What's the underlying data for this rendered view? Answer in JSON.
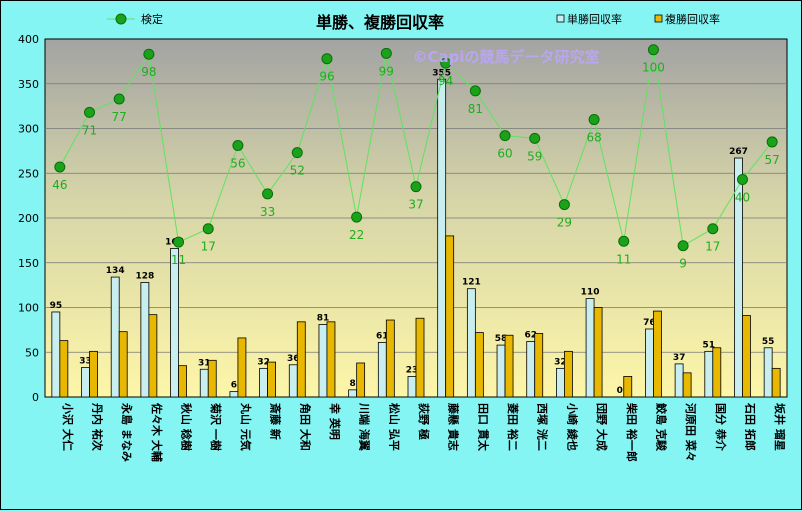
{
  "chart_data": {
    "type": "bar",
    "title": "単勝、複勝回収率",
    "watermark": "©Capiの競馬データ研究室",
    "ylim": [
      0,
      400
    ],
    "yticks": [
      0,
      50,
      100,
      150,
      200,
      250,
      300,
      350,
      400
    ],
    "grid": true,
    "legend_position": "top",
    "categories": [
      "小沢 大仁",
      "丹内 祐次",
      "永島 まなみ",
      "佐々木 大輔",
      "秋山 稔樹",
      "菊沢 一樹",
      "丸山 元気",
      "斎藤 新",
      "角田 大和",
      "幸 英明",
      "川端 海翼",
      "松山 弘平",
      "荻野 極",
      "藤懸 貴志",
      "田口 貫太",
      "菱田 裕二",
      "西塚 洸二",
      "小崎 綾也",
      "団野 大成",
      "柴田 裕一郎",
      "鮫島 克駿",
      "河原田 菜々",
      "国分 恭介",
      "石田 拓郎",
      "坂井 瑠星"
    ],
    "series": [
      {
        "name": "単勝回収率",
        "type": "bar",
        "color": "#c8eef0",
        "values": [
          95,
          33,
          134,
          128,
          166,
          31,
          6,
          32,
          36,
          81,
          8,
          61,
          23,
          355,
          121,
          58,
          62,
          32,
          110,
          0,
          76,
          37,
          51,
          267,
          55
        ]
      },
      {
        "name": "複勝回収率",
        "type": "bar",
        "color": "#e8b800",
        "values": [
          63,
          51,
          73,
          92,
          35,
          41,
          66,
          39,
          84,
          84,
          38,
          86,
          88,
          180,
          72,
          69,
          71,
          51,
          100,
          23,
          96,
          27,
          55,
          91,
          32
        ]
      },
      {
        "name": "検定",
        "type": "line",
        "color": "#1fae1f",
        "values": [
          257,
          318,
          333,
          383,
          173,
          188,
          281,
          227,
          273,
          378,
          201,
          384,
          235,
          373,
          342,
          292,
          289,
          215,
          310,
          174,
          388,
          169,
          188,
          243,
          285
        ],
        "labels": [
          46,
          71,
          77,
          98,
          11,
          17,
          56,
          33,
          52,
          96,
          22,
          99,
          37,
          94,
          81,
          60,
          59,
          29,
          68,
          11,
          100,
          9,
          17,
          40,
          57
        ]
      }
    ]
  }
}
